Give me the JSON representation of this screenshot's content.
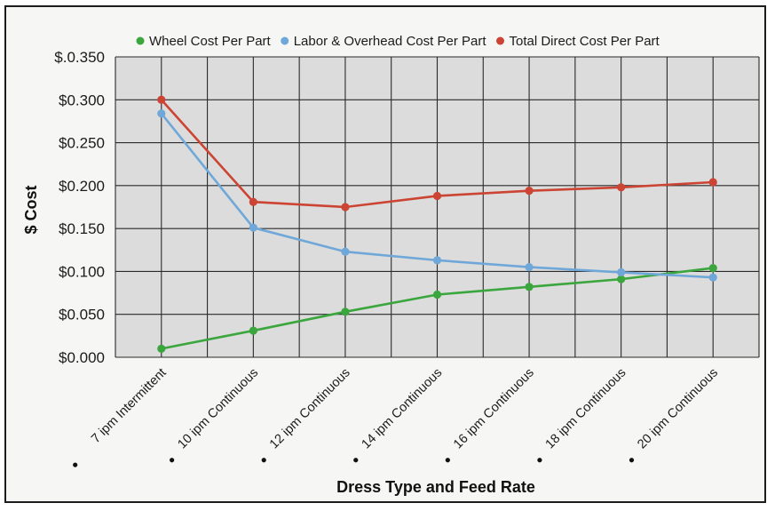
{
  "chart_data": {
    "type": "line",
    "xlabel": "Dress Type and Feed Rate",
    "ylabel": "$ Cost",
    "categories": [
      "7 ipm Intermittent",
      "10 ipm Continuous",
      "12 ipm Continuous",
      "14 ipm Continuous",
      "16 ipm Continuous",
      "18 ipm Continuous",
      "20 ipm Continuous"
    ],
    "ylim": [
      0,
      0.35
    ],
    "yticks": [
      "$0.000",
      "$0.050",
      "$0.100",
      "$0.150",
      "$0.200",
      "$0.250",
      "$0.300",
      "$.0.350"
    ],
    "grid": true,
    "legend_position": "top",
    "series": [
      {
        "name": "Wheel Cost Per Part",
        "color": "#3aa63d",
        "values": [
          0.01,
          0.031,
          0.053,
          0.073,
          0.082,
          0.091,
          0.104
        ]
      },
      {
        "name": "Labor & Overhead Cost Per Part",
        "color": "#6fa8d8",
        "values": [
          0.284,
          0.151,
          0.123,
          0.113,
          0.105,
          0.099,
          0.093
        ]
      },
      {
        "name": "Total Direct Cost Per Part",
        "color": "#cc4433",
        "values": [
          0.3,
          0.181,
          0.175,
          0.188,
          0.194,
          0.198,
          0.204
        ]
      }
    ]
  }
}
